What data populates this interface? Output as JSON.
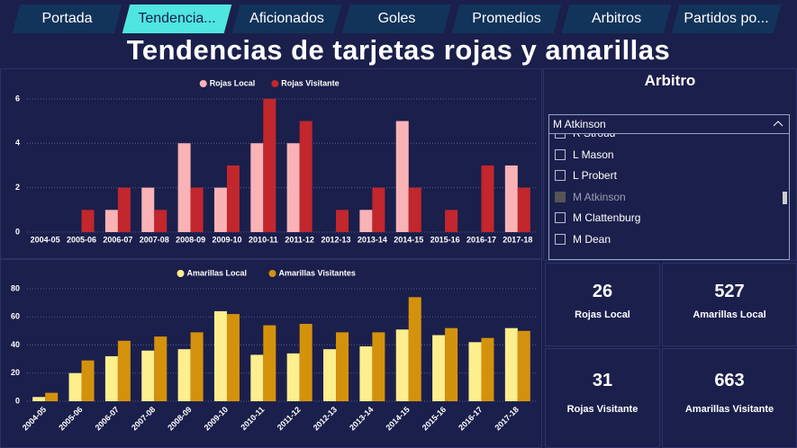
{
  "tabs": [
    "Portada",
    "Tendencia...",
    "Aficionados",
    "Goles",
    "Promedios",
    "Arbitros",
    "Partidos po..."
  ],
  "active_tab": 1,
  "title": "Tendencias de tarjetas rojas y amarillas",
  "chart_data": [
    {
      "type": "bar",
      "categories": [
        "2004-05",
        "2005-06",
        "2006-07",
        "2007-08",
        "2008-09",
        "2009-10",
        "2010-11",
        "2011-12",
        "2012-13",
        "2013-14",
        "2014-15",
        "2015-16",
        "2016-17",
        "2017-18"
      ],
      "series": [
        {
          "name": "Rojas Local",
          "color": "#f9b3b6",
          "values": [
            0,
            0,
            1,
            2,
            4,
            2,
            4,
            4,
            0,
            1,
            5,
            0,
            0,
            3
          ]
        },
        {
          "name": "Rojas Visitante",
          "color": "#c1272d",
          "values": [
            0,
            1,
            2,
            1,
            2,
            3,
            6,
            5,
            1,
            2,
            2,
            1,
            3,
            2
          ]
        }
      ],
      "ylim": [
        0,
        6.4
      ],
      "yticks": [
        0,
        2,
        4,
        6
      ],
      "grid": true,
      "legend": "top"
    },
    {
      "type": "bar",
      "categories": [
        "2004-05",
        "2005-06",
        "2006-07",
        "2007-08",
        "2008-09",
        "2009-10",
        "2010-11",
        "2011-12",
        "2012-13",
        "2013-14",
        "2014-15",
        "2015-16",
        "2016-17",
        "2017-18"
      ],
      "series": [
        {
          "name": "Amarillas Local",
          "color": "#fdee8e",
          "values": [
            3,
            20,
            32,
            36,
            37,
            64,
            33,
            34,
            37,
            39,
            51,
            47,
            42,
            52
          ]
        },
        {
          "name": "Amarillas Visitantes",
          "color": "#d4920c",
          "values": [
            6,
            29,
            43,
            46,
            49,
            62,
            54,
            55,
            49,
            49,
            74,
            52,
            45,
            50
          ]
        }
      ],
      "ylim": [
        0,
        87
      ],
      "yticks": [
        0,
        20,
        40,
        60,
        80
      ],
      "grid": true,
      "legend": "top",
      "rotate_labels": true
    }
  ],
  "slicer": {
    "title": "Arbitro",
    "selected": "M Atkinson",
    "items": [
      "R Stroud",
      "L Mason",
      "L Probert",
      "M Atkinson",
      "M Clattenburg",
      "M Dean"
    ]
  },
  "cards": [
    {
      "value": "26",
      "label": "Rojas Local"
    },
    {
      "value": "527",
      "label": "Amarillas Local"
    },
    {
      "value": "31",
      "label": "Rojas Visitante"
    },
    {
      "value": "663",
      "label": "Amarillas Visitante"
    }
  ]
}
